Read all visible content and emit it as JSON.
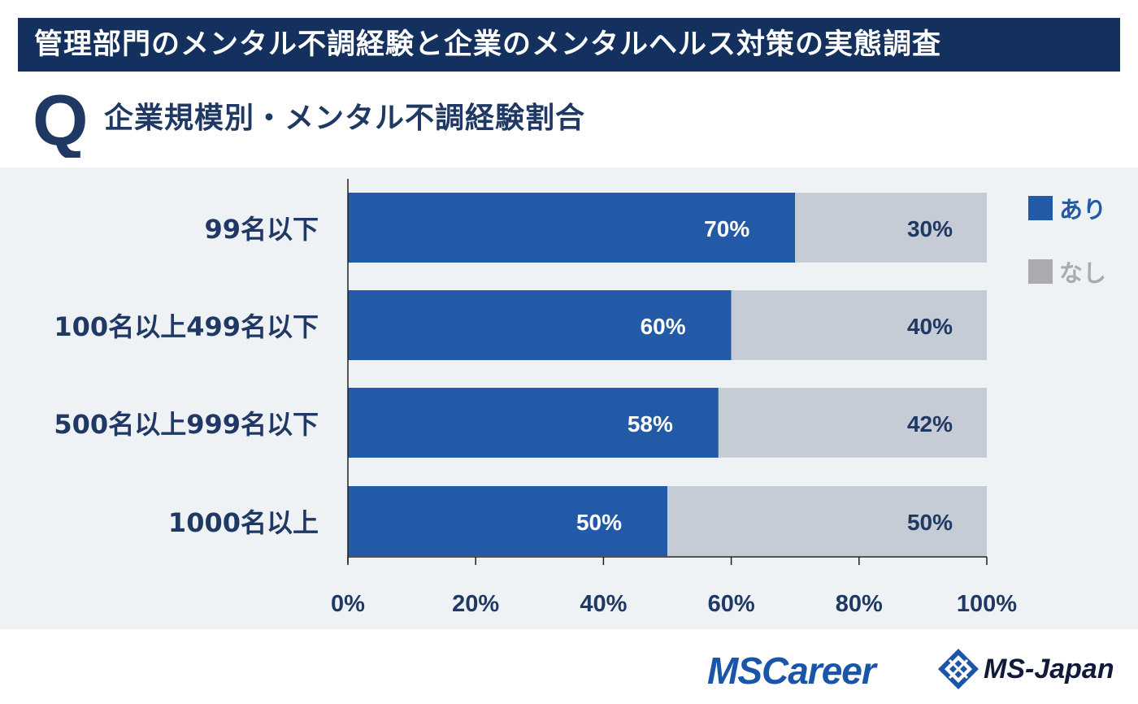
{
  "header": {
    "title": "管理部門のメンタル不調経験と企業のメンタルヘルス対策の実態調査"
  },
  "question": {
    "mark": "Q",
    "title": "企業規模別・メンタル不調経験割合"
  },
  "colors": {
    "banner": "#13305f",
    "ari": "#225aa7",
    "nashi": "#c5ccd5",
    "nashi_legend": "#a9abae",
    "text_dark": "#1f3864",
    "chart_bg": "#eff2f5"
  },
  "chart_data": {
    "type": "bar",
    "orientation": "horizontal",
    "stacked": true,
    "categories": [
      "99名以下",
      "100名以上499名以下",
      "500名以上999名以下",
      "1000名以上"
    ],
    "series": [
      {
        "name": "あり",
        "values": [
          70,
          60,
          58,
          50
        ],
        "labels": [
          "70%",
          "60%",
          "58%",
          "50%"
        ],
        "color": "#225aa7"
      },
      {
        "name": "なし",
        "values": [
          30,
          40,
          42,
          50
        ],
        "labels": [
          "30%",
          "40%",
          "42%",
          "50%"
        ],
        "color": "#c5ccd5"
      }
    ],
    "xlim": [
      0,
      100
    ],
    "xticks": [
      "0%",
      "20%",
      "40%",
      "60%",
      "80%",
      "100%"
    ],
    "grid": false,
    "legend": {
      "position": "top-right",
      "entries": [
        "あり",
        "なし"
      ]
    }
  },
  "footer": {
    "logo1": "MSCareer",
    "logo2": "MS-Japan"
  }
}
